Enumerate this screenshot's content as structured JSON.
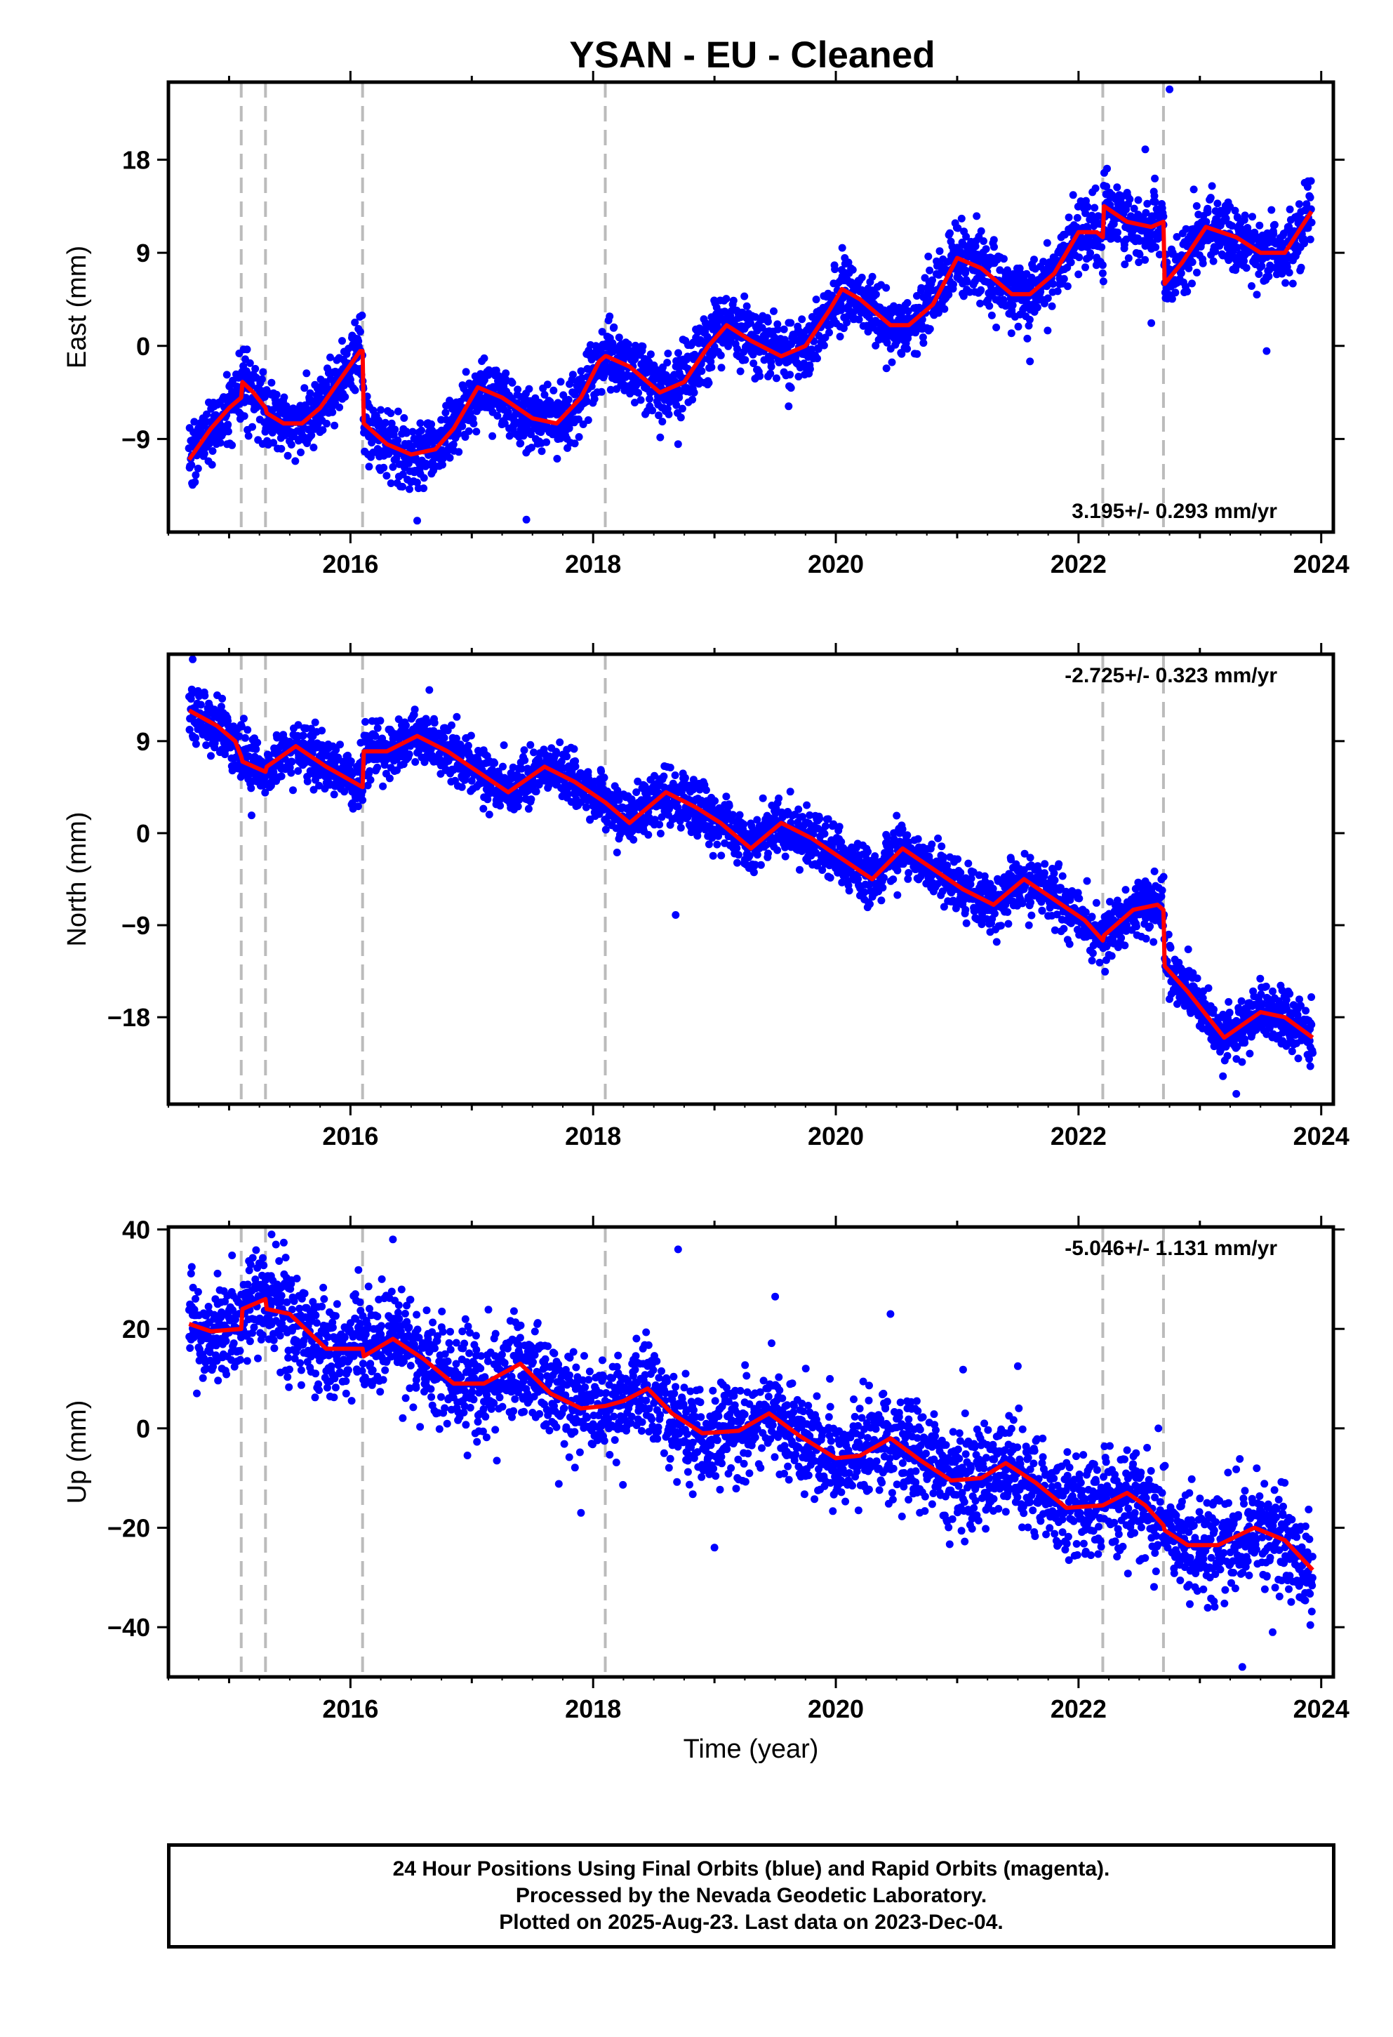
{
  "title": "YSAN  - EU - Cleaned",
  "colors": {
    "points": "#0000ff",
    "model": "#ff0000",
    "breaks": "#bbbbbb",
    "axes": "#000000"
  },
  "chart_data": [
    {
      "type": "scatter",
      "ylabel": "East (mm)",
      "xlabel": "",
      "xlim": [
        2014.5,
        2024.1
      ],
      "ylim": [
        -18,
        25.5
      ],
      "yticks": [
        -9,
        0,
        9,
        18
      ],
      "xticks": [
        2016,
        2018,
        2020,
        2022,
        2024
      ],
      "rate_label": "3.195+/- 0.293 mm/yr",
      "rate_position": "bottom-right",
      "breaks": [
        2015.1,
        2015.3,
        2016.1,
        2018.1,
        2022.2,
        2022.7
      ],
      "model": {
        "x": [
          2014.67,
          2014.85,
          2015.0,
          2015.1,
          2015.11,
          2015.2,
          2015.3,
          2015.31,
          2015.45,
          2015.6,
          2015.75,
          2015.9,
          2016.08,
          2016.1,
          2016.11,
          2016.3,
          2016.5,
          2016.7,
          2016.85,
          2017.05,
          2017.25,
          2017.5,
          2017.7,
          2017.9,
          2018.05,
          2018.1,
          2018.11,
          2018.3,
          2018.55,
          2018.75,
          2018.95,
          2019.1,
          2019.3,
          2019.55,
          2019.75,
          2019.95,
          2020.05,
          2020.2,
          2020.45,
          2020.6,
          2020.8,
          2021.0,
          2021.2,
          2021.45,
          2021.6,
          2021.8,
          2022.0,
          2022.15,
          2022.2,
          2022.21,
          2022.4,
          2022.6,
          2022.7,
          2022.71,
          2022.85,
          2023.05,
          2023.3,
          2023.5,
          2023.7,
          2023.92
        ],
        "y": [
          -11,
          -8,
          -6,
          -5,
          -3.5,
          -4.5,
          -6,
          -6.5,
          -7.5,
          -7.5,
          -6,
          -3.5,
          -0.5,
          -0.5,
          -7.5,
          -9.5,
          -10.5,
          -10,
          -8,
          -4,
          -5,
          -7,
          -7.5,
          -5,
          -1.5,
          -1,
          -1,
          -2,
          -4.5,
          -3.5,
          0,
          2,
          0.5,
          -1,
          0,
          3.5,
          5.5,
          4.5,
          2,
          2,
          4,
          8.5,
          7.5,
          5,
          5,
          7,
          11,
          11,
          10.5,
          13.5,
          12,
          11.5,
          12,
          6,
          8,
          11.5,
          10.5,
          9,
          9,
          13
        ]
      },
      "noise_sd": 1.6,
      "n_points": 3100,
      "outliers": [
        {
          "x": 2022.75,
          "y": 24.8
        },
        {
          "x": 2017.45,
          "y": -16.8
        },
        {
          "x": 2016.55,
          "y": -16.9
        },
        {
          "x": 2021.6,
          "y": -1.5
        },
        {
          "x": 2023.55,
          "y": -0.5
        },
        {
          "x": 2018.7,
          "y": -9.5
        },
        {
          "x": 2022.55,
          "y": 19
        },
        {
          "x": 2022.6,
          "y": 2.2
        }
      ]
    },
    {
      "type": "scatter",
      "ylabel": "North (mm)",
      "xlabel": "",
      "xlim": [
        2014.5,
        2024.1
      ],
      "ylim": [
        -26.5,
        17.5
      ],
      "yticks": [
        -18,
        -9,
        0,
        9
      ],
      "xticks": [
        2016,
        2018,
        2020,
        2022,
        2024
      ],
      "rate_label": "-2.725+/- 0.323 mm/yr",
      "rate_position": "top-right",
      "breaks": [
        2015.1,
        2015.3,
        2016.1,
        2018.1,
        2022.2,
        2022.7
      ],
      "model": {
        "x": [
          2014.67,
          2014.9,
          2015.05,
          2015.1,
          2015.11,
          2015.3,
          2015.31,
          2015.55,
          2015.8,
          2016.1,
          2016.11,
          2016.3,
          2016.55,
          2016.8,
          2017.05,
          2017.3,
          2017.6,
          2017.85,
          2018.1,
          2018.3,
          2018.6,
          2018.85,
          2019.05,
          2019.3,
          2019.55,
          2019.8,
          2020.05,
          2020.3,
          2020.55,
          2020.8,
          2021.05,
          2021.3,
          2021.55,
          2021.8,
          2022.05,
          2022.2,
          2022.21,
          2022.45,
          2022.65,
          2022.7,
          2022.71,
          2022.9,
          2023.2,
          2023.5,
          2023.7,
          2023.93
        ],
        "y": [
          12,
          10.5,
          9,
          7.5,
          7,
          6,
          6.5,
          8.5,
          6.5,
          4.5,
          8,
          8,
          9.5,
          8,
          6,
          4,
          6.5,
          5,
          3,
          1,
          4,
          2.5,
          1,
          -1.5,
          1,
          -0.5,
          -2.5,
          -4.5,
          -1.5,
          -3.5,
          -5.5,
          -7,
          -4.5,
          -6.5,
          -8.5,
          -10.5,
          -10,
          -7.5,
          -7,
          -7.5,
          -13,
          -15.5,
          -20,
          -17.5,
          -18,
          -20
        ]
      },
      "noise_sd": 1.35,
      "n_points": 3100,
      "outliers": [
        {
          "x": 2014.7,
          "y": 17
        },
        {
          "x": 2018.68,
          "y": -8
        },
        {
          "x": 2023.3,
          "y": -25.5
        },
        {
          "x": 2016.65,
          "y": 14
        }
      ]
    },
    {
      "type": "scatter",
      "ylabel": "Up (mm)",
      "xlabel": "Time (year)",
      "xlim": [
        2014.5,
        2024.1
      ],
      "ylim": [
        -50,
        40.5
      ],
      "yticks": [
        -40,
        -20,
        0,
        20,
        40
      ],
      "xticks": [
        2016,
        2018,
        2020,
        2022,
        2024
      ],
      "rate_label": "-5.046+/- 1.131 mm/yr",
      "rate_position": "top-right",
      "breaks": [
        2015.1,
        2015.3,
        2016.1,
        2018.1,
        2022.2,
        2022.7
      ],
      "model": {
        "x": [
          2014.67,
          2014.85,
          2015.1,
          2015.11,
          2015.3,
          2015.31,
          2015.5,
          2015.8,
          2016.1,
          2016.11,
          2016.35,
          2016.6,
          2016.85,
          2017.1,
          2017.4,
          2017.65,
          2017.9,
          2018.1,
          2018.25,
          2018.45,
          2018.65,
          2018.9,
          2019.2,
          2019.45,
          2019.7,
          2020.0,
          2020.2,
          2020.45,
          2020.7,
          2020.95,
          2021.2,
          2021.4,
          2021.65,
          2021.9,
          2022.2,
          2022.4,
          2022.55,
          2022.7,
          2022.71,
          2022.9,
          2023.15,
          2023.45,
          2023.7,
          2023.93
        ],
        "y": [
          21,
          19.5,
          20,
          24,
          26,
          24,
          23,
          16,
          16,
          14.5,
          18,
          14,
          9,
          9,
          13,
          7,
          4,
          4.5,
          5.5,
          8,
          3,
          -1,
          -0.5,
          3,
          -1.5,
          -6,
          -5.5,
          -2,
          -6.5,
          -10.5,
          -10,
          -7,
          -11,
          -16,
          -15.5,
          -13,
          -15.5,
          -19.5,
          -20.5,
          -23.5,
          -23.5,
          -20,
          -22.5,
          -28.5
        ]
      },
      "noise_sd": 5.0,
      "n_points": 3100,
      "outliers": [
        {
          "x": 2023.35,
          "y": -48
        },
        {
          "x": 2018.7,
          "y": 36
        },
        {
          "x": 2019.5,
          "y": 26.5
        },
        {
          "x": 2016.35,
          "y": 38
        },
        {
          "x": 2017.9,
          "y": -17
        },
        {
          "x": 2019.0,
          "y": -24
        },
        {
          "x": 2023.6,
          "y": -41
        },
        {
          "x": 2015.35,
          "y": 39
        },
        {
          "x": 2020.45,
          "y": 23
        },
        {
          "x": 2021.5,
          "y": 12.5
        }
      ]
    }
  ],
  "footer": {
    "line1": "24 Hour Positions Using Final Orbits (blue) and Rapid Orbits (magenta).",
    "line2": "Processed by the Nevada Geodetic Laboratory.",
    "line3": "Plotted on 2025-Aug-23. Last data on 2023-Dec-04."
  }
}
